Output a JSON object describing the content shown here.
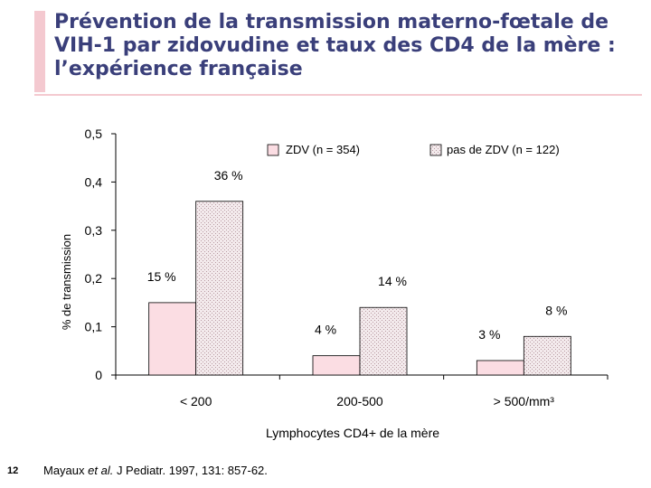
{
  "slide": {
    "title": "Prévention de la transmission materno-fœtale de VIH-1 par zidovudine et taux des CD4 de la mère : l’expérience française",
    "page_number": "12",
    "citation": {
      "authors": "Mayaux ",
      "etal": "et al.",
      "rest": " J Pediatr. 1997, 131: 857-62."
    }
  },
  "colors": {
    "title": "#3a3f7a",
    "accent": "#f4c9d0",
    "zdv_fill": "#fbdde3",
    "nozdv_fill": "#f3eaec"
  },
  "chart_data": {
    "type": "bar",
    "categories": [
      "< 200",
      "200-500",
      "> 500/mm³"
    ],
    "series": [
      {
        "name": "ZDV (n = 354)",
        "values": [
          0.15,
          0.04,
          0.03
        ],
        "labels": [
          "15 %",
          "4 %",
          "3 %"
        ]
      },
      {
        "name": "pas de ZDV (n = 122)",
        "values": [
          0.36,
          0.14,
          0.08
        ],
        "labels": [
          "36 %",
          "14 %",
          "8 %"
        ]
      }
    ],
    "ylabel": "% de transmission",
    "xlabel": "Lymphocytes CD4+ de la mère",
    "ylim": [
      0,
      0.5
    ],
    "yticks": [
      {
        "value": 0,
        "label": "0"
      },
      {
        "value": 0.1,
        "label": "0,1"
      },
      {
        "value": 0.2,
        "label": "0,2"
      },
      {
        "value": 0.3,
        "label": "0,3"
      },
      {
        "value": 0.4,
        "label": "0,4"
      },
      {
        "value": 0.5,
        "label": "0,5"
      }
    ],
    "grid": false,
    "legend": "top-right"
  }
}
